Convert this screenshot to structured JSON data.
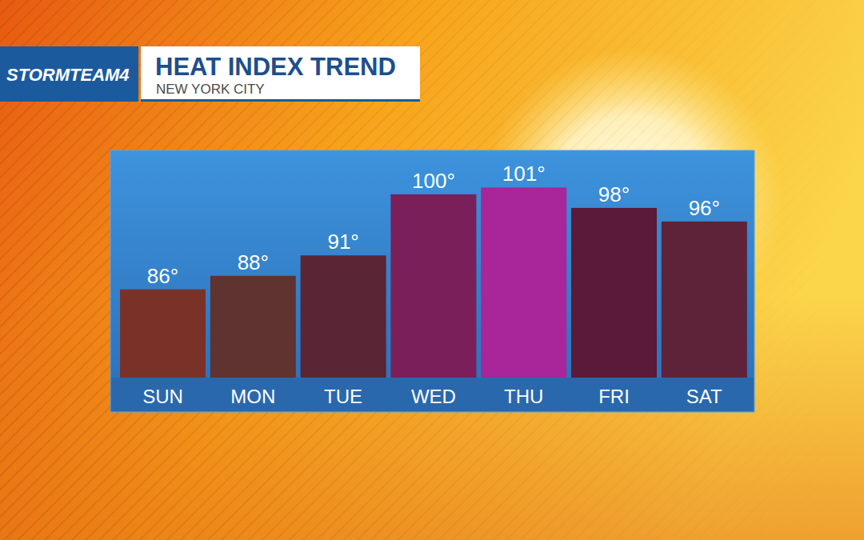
{
  "header": {
    "brand": "STORMTEAM4"
  },
  "chart_data": {
    "type": "bar",
    "title": "HEAT INDEX TREND",
    "subtitle": "NEW YORK CITY",
    "categories": [
      "SUN",
      "MON",
      "TUE",
      "WED",
      "THU",
      "FRI",
      "SAT"
    ],
    "values": [
      86,
      88,
      91,
      100,
      101,
      98,
      96
    ],
    "value_labels": [
      "86°",
      "88°",
      "91°",
      "100°",
      "101°",
      "98°",
      "96°"
    ],
    "colors": [
      "#7a3228",
      "#5e3330",
      "#5a2535",
      "#7a1f5a",
      "#a8259a",
      "#5a1a38",
      "#5e2338"
    ],
    "ylim": [
      73,
      106
    ],
    "data_labels": true,
    "tick_labels": "x",
    "grid": false
  }
}
